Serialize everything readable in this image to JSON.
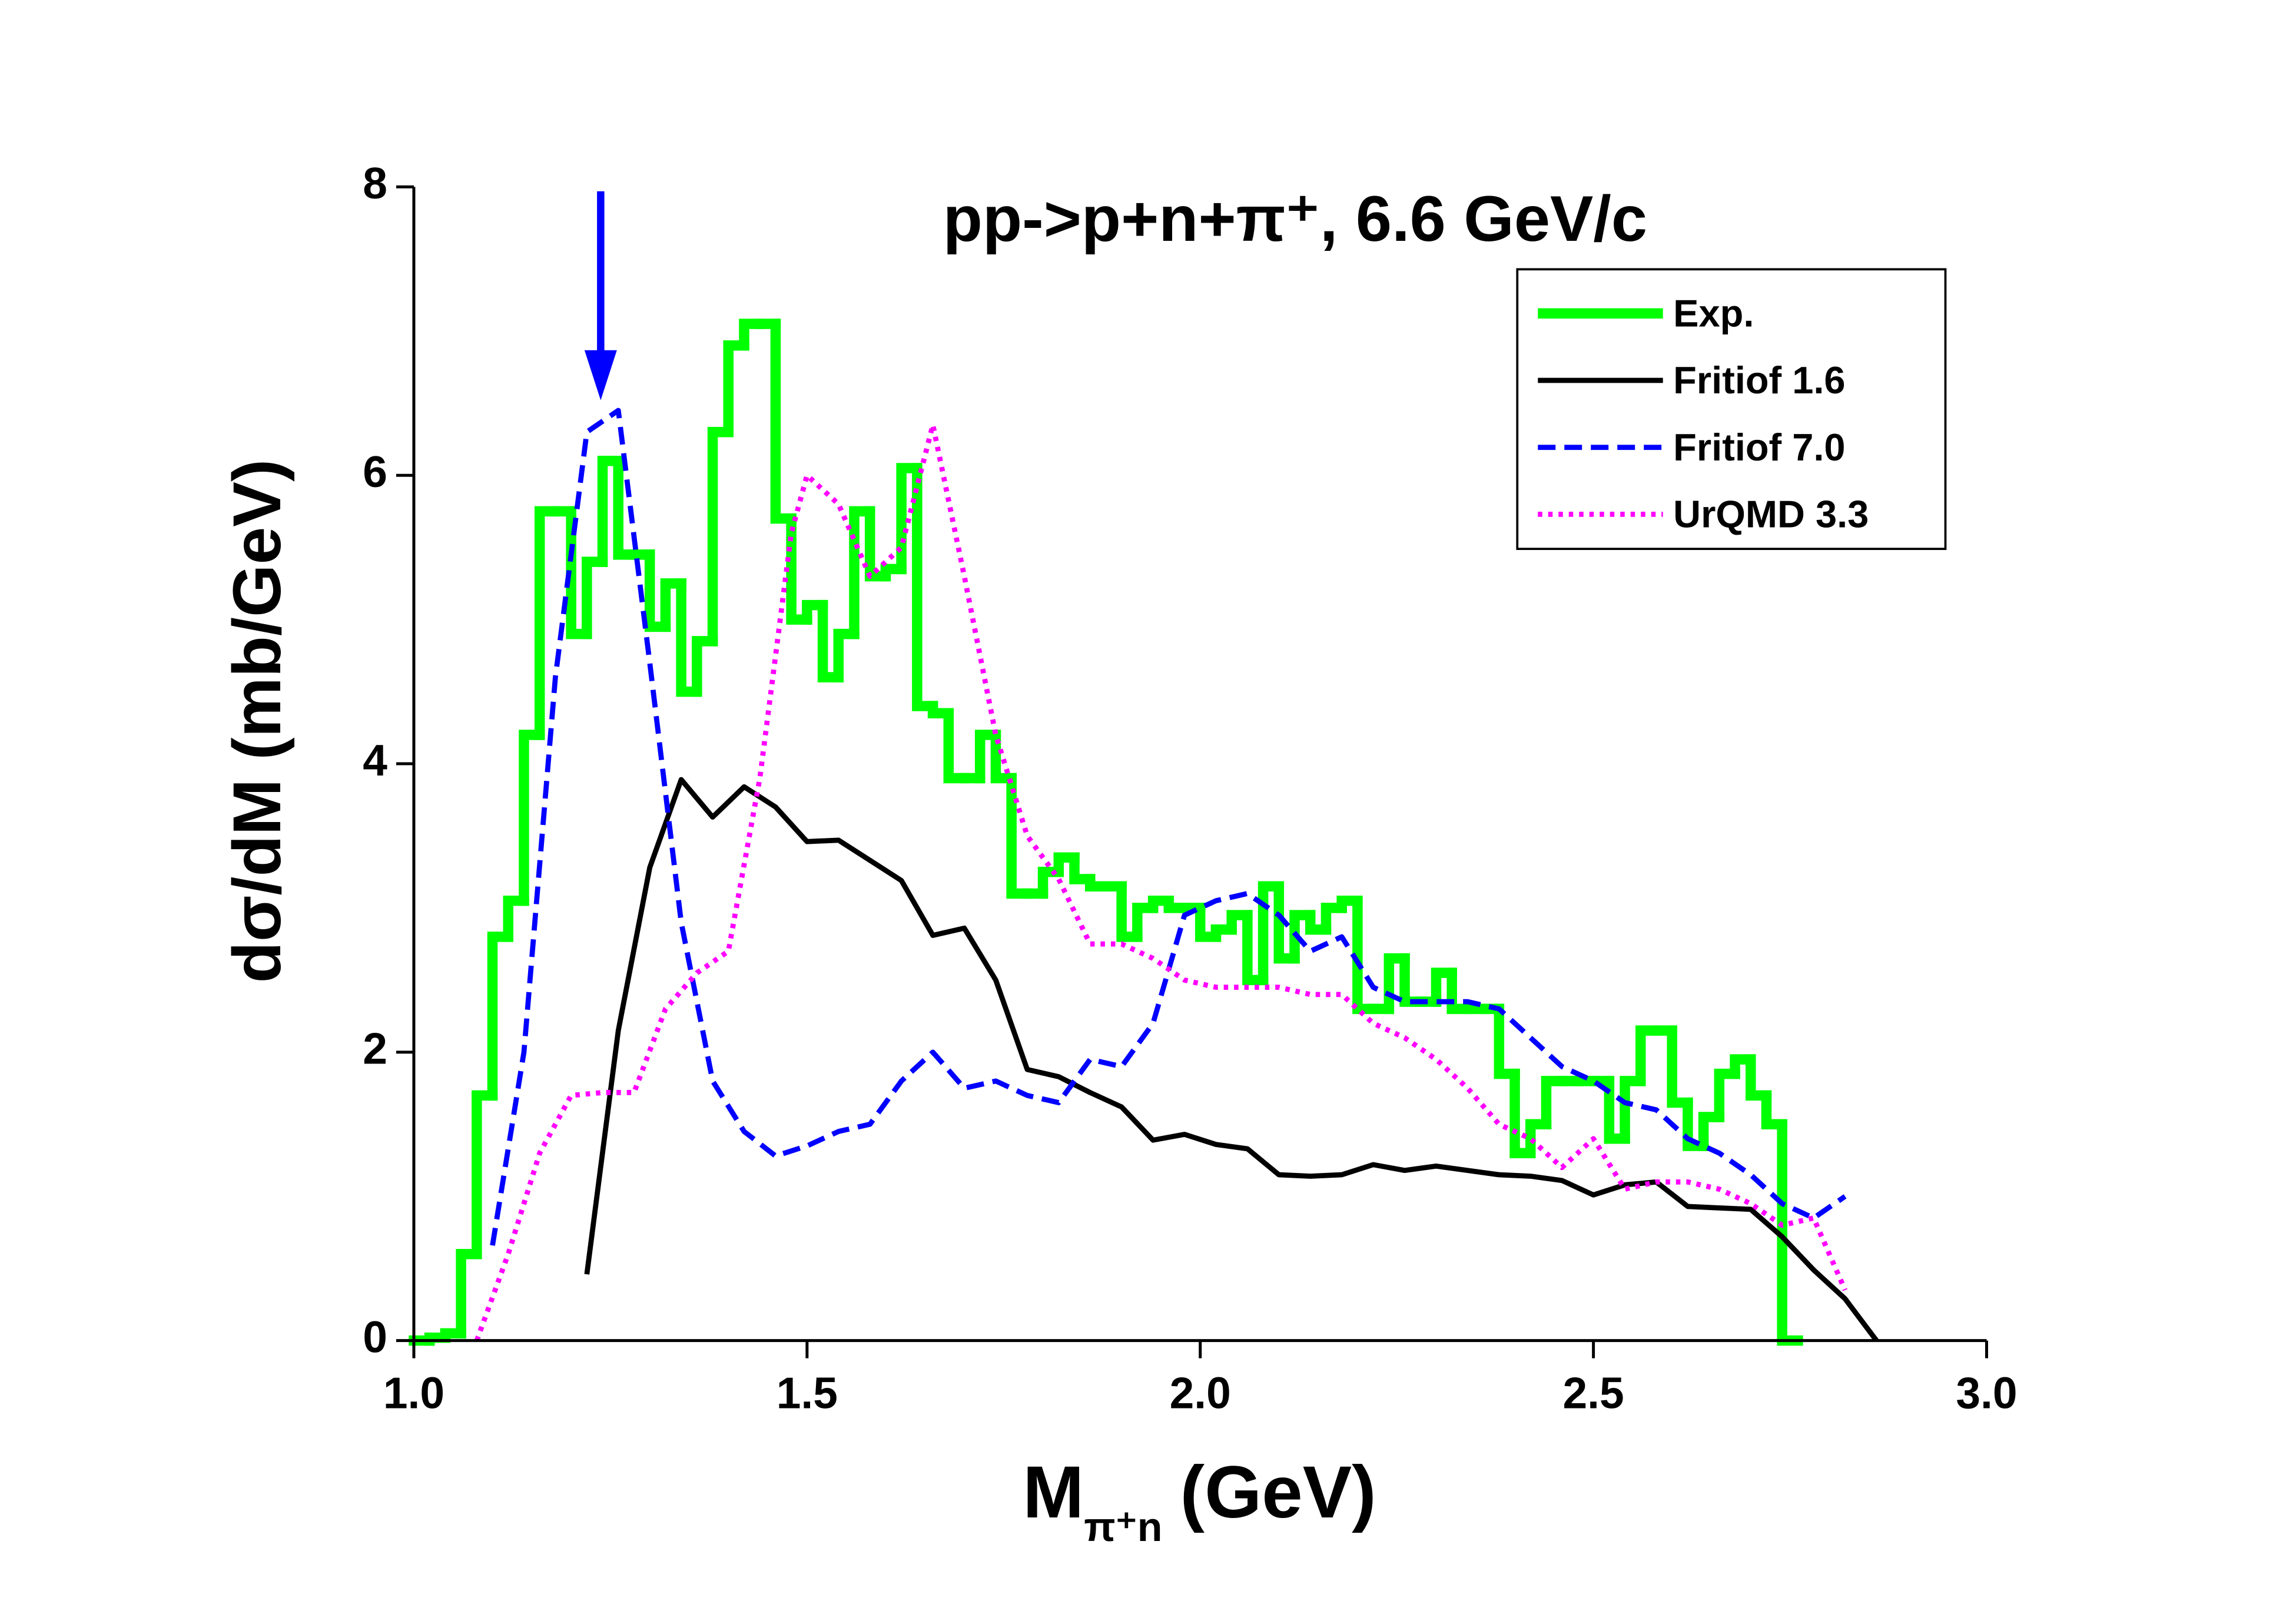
{
  "chart_data": {
    "type": "histogram",
    "title": "pp->p+n+π⁺, 6.6 GeV/c",
    "x_label": {
      "text": "M",
      "subscript": "π⁺n",
      "unit": "(GeV)"
    },
    "y_label": "dσ/dM (mb/GeV)",
    "xlim": [
      1.0,
      3.0
    ],
    "ylim": [
      0,
      8
    ],
    "xticks": [
      {
        "value": 1.0,
        "label": "1.0"
      },
      1.5,
      {
        "value": 2.0,
        "label": "2.0"
      },
      2.5,
      {
        "value": 3.0,
        "label": "3.0"
      }
    ],
    "yticks": [
      0,
      2,
      4,
      6,
      8
    ],
    "legend": "upper right",
    "series": [
      {
        "name": "Exp.",
        "type": "histogram",
        "color": "#00ff00",
        "line_style": "solid",
        "bins": [
          1.0,
          1.02,
          1.04,
          1.06,
          1.08,
          1.1,
          1.12,
          1.14,
          1.16,
          1.18,
          1.2,
          1.22,
          1.24,
          1.26,
          1.28,
          1.3,
          1.32,
          1.34,
          1.36,
          1.38,
          1.4,
          1.42,
          1.44,
          1.46,
          1.48,
          1.5,
          1.52,
          1.54,
          1.56,
          1.58,
          1.6,
          1.62,
          1.64,
          1.66,
          1.68,
          1.7,
          1.72,
          1.74,
          1.76,
          1.78,
          1.8,
          1.82,
          1.84,
          1.86,
          1.88,
          1.9,
          1.92,
          1.94,
          1.96,
          1.98,
          2.0,
          2.02,
          2.04,
          2.06,
          2.08,
          2.1,
          2.12,
          2.14,
          2.16,
          2.18,
          2.2,
          2.22,
          2.24,
          2.26,
          2.28,
          2.3,
          2.32,
          2.34,
          2.36,
          2.38,
          2.4,
          2.42,
          2.44,
          2.46,
          2.48,
          2.5,
          2.52,
          2.54,
          2.56,
          2.58,
          2.6,
          2.62,
          2.64,
          2.66,
          2.68,
          2.7,
          2.72,
          2.74,
          2.76
        ],
        "values": [
          0,
          0.02,
          0.05,
          0.6,
          1.7,
          2.8,
          3.05,
          4.2,
          5.75,
          5.75,
          4.9,
          5.4,
          6.1,
          5.45,
          5.45,
          4.95,
          5.25,
          4.5,
          4.85,
          6.3,
          6.9,
          7.05,
          7.05,
          5.7,
          5.0,
          5.1,
          4.6,
          4.9,
          5.75,
          5.3,
          5.35,
          6.05,
          4.4,
          4.35,
          3.9,
          3.9,
          4.2,
          3.9,
          3.1,
          3.1,
          3.25,
          3.35,
          3.2,
          3.15,
          3.15,
          2.8,
          3.0,
          3.05,
          3.0,
          3.0,
          2.8,
          2.85,
          2.95,
          2.5,
          3.15,
          2.65,
          2.95,
          2.85,
          3.0,
          3.05,
          2.3,
          2.3,
          2.65,
          2.35,
          2.35,
          2.55,
          2.3,
          2.3,
          2.3,
          1.85,
          1.3,
          1.5,
          1.8,
          1.8,
          1.8,
          1.8,
          1.4,
          1.8,
          2.15,
          2.15,
          1.65,
          1.35,
          1.55,
          1.85,
          1.95,
          1.7,
          1.5,
          0
        ]
      },
      {
        "name": "Fritiof 1.6",
        "type": "line",
        "color": "#000000",
        "line_style": "solid",
        "x": [
          1.22,
          1.26,
          1.3,
          1.34,
          1.38,
          1.42,
          1.46,
          1.5,
          1.54,
          1.58,
          1.62,
          1.66,
          1.7,
          1.74,
          1.78,
          1.82,
          1.86,
          1.9,
          1.94,
          1.98,
          2.02,
          2.06,
          2.1,
          2.14,
          2.18,
          2.22,
          2.26,
          2.3,
          2.34,
          2.38,
          2.42,
          2.46,
          2.5,
          2.54,
          2.58,
          2.62,
          2.66,
          2.7,
          2.74,
          2.78,
          2.82,
          2.86
        ],
        "values": [
          0.46,
          2.15,
          3.28,
          3.89,
          3.63,
          3.84,
          3.7,
          3.46,
          3.47,
          3.33,
          3.19,
          2.81,
          2.86,
          2.5,
          1.88,
          1.83,
          1.72,
          1.62,
          1.39,
          1.43,
          1.36,
          1.33,
          1.15,
          1.14,
          1.15,
          1.22,
          1.18,
          1.21,
          1.18,
          1.15,
          1.14,
          1.11,
          1.01,
          1.08,
          1.1,
          0.93,
          0.92,
          0.91,
          0.72,
          0.49,
          0.29,
          0
        ]
      },
      {
        "name": "Fritiof 7.0",
        "type": "line",
        "color": "#0000ff",
        "line_style": "dashed",
        "x": [
          1.1,
          1.14,
          1.18,
          1.22,
          1.26,
          1.3,
          1.34,
          1.38,
          1.42,
          1.46,
          1.5,
          1.54,
          1.58,
          1.62,
          1.66,
          1.7,
          1.74,
          1.78,
          1.82,
          1.86,
          1.9,
          1.94,
          1.98,
          2.02,
          2.06,
          2.1,
          2.14,
          2.18,
          2.22,
          2.26,
          2.3,
          2.34,
          2.38,
          2.42,
          2.46,
          2.5,
          2.54,
          2.58,
          2.62,
          2.66,
          2.7,
          2.74,
          2.78,
          2.82
        ],
        "values": [
          0.66,
          2.0,
          4.6,
          6.3,
          6.45,
          4.7,
          2.9,
          1.8,
          1.45,
          1.28,
          1.35,
          1.45,
          1.5,
          1.8,
          2.0,
          1.75,
          1.8,
          1.7,
          1.65,
          1.95,
          1.9,
          2.2,
          2.95,
          3.05,
          3.1,
          2.95,
          2.7,
          2.8,
          2.45,
          2.35,
          2.35,
          2.35,
          2.3,
          2.1,
          1.9,
          1.8,
          1.65,
          1.6,
          1.4,
          1.3,
          1.15,
          0.95,
          0.85,
          1.0
        ]
      },
      {
        "name": "UrQMD 3.3",
        "type": "line",
        "color": "#ff00ff",
        "line_style": "dotted",
        "x": [
          1.08,
          1.12,
          1.16,
          1.2,
          1.24,
          1.28,
          1.32,
          1.36,
          1.4,
          1.44,
          1.48,
          1.5,
          1.54,
          1.58,
          1.62,
          1.66,
          1.7,
          1.74,
          1.78,
          1.82,
          1.86,
          1.9,
          1.94,
          1.98,
          2.02,
          2.06,
          2.1,
          2.14,
          2.18,
          2.22,
          2.26,
          2.3,
          2.34,
          2.38,
          2.42,
          2.46,
          2.5,
          2.54,
          2.58,
          2.62,
          2.66,
          2.7,
          2.74,
          2.78,
          2.82
        ],
        "values": [
          0.0,
          0.6,
          1.3,
          1.7,
          1.72,
          1.72,
          2.3,
          2.55,
          2.7,
          3.9,
          5.6,
          6.0,
          5.8,
          5.3,
          5.5,
          6.35,
          5.3,
          4.2,
          3.5,
          3.2,
          2.75,
          2.75,
          2.65,
          2.5,
          2.45,
          2.45,
          2.45,
          2.4,
          2.4,
          2.2,
          2.1,
          1.95,
          1.75,
          1.5,
          1.4,
          1.2,
          1.4,
          1.05,
          1.1,
          1.1,
          1.05,
          0.95,
          0.8,
          0.85,
          0.35
        ]
      }
    ]
  }
}
